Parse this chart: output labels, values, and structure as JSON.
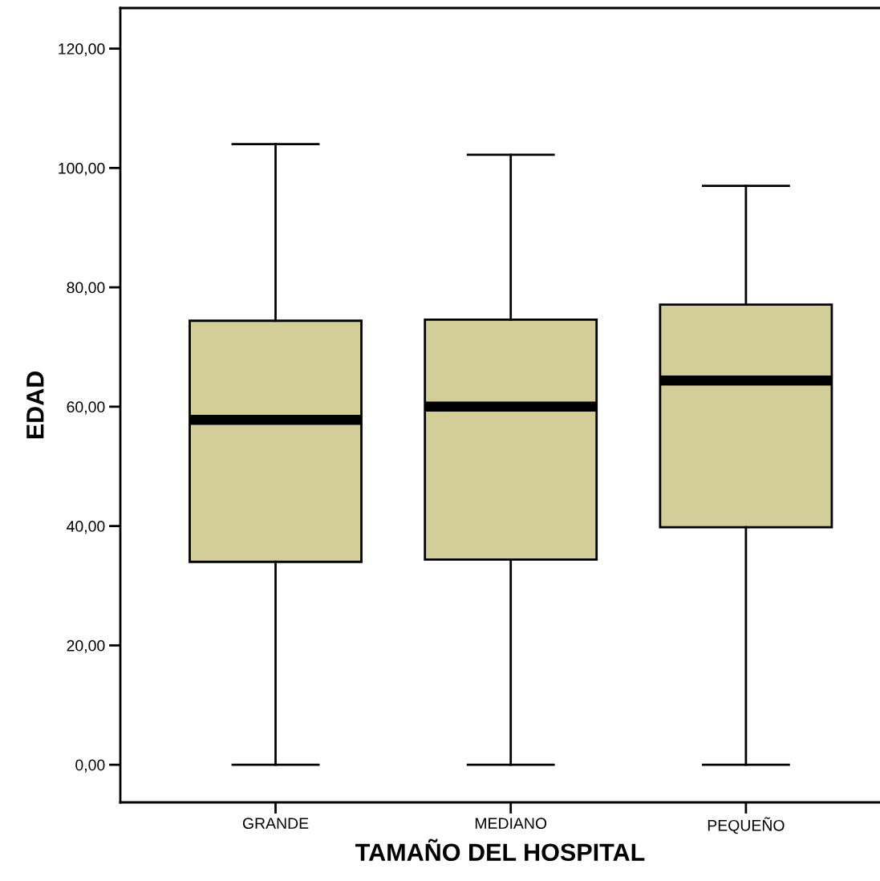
{
  "chart_data": {
    "type": "box",
    "xlabel": "TAMAÑO DEL HOSPITAL",
    "ylabel": "EDAD",
    "categories": [
      "GRANDE",
      "MEDIANO",
      "PEQUEÑO"
    ],
    "series": [
      {
        "color": "#d3ce99",
        "boxes": [
          {
            "low": 0,
            "q1": 34.0,
            "median": 57.8,
            "q3": 74.4,
            "high": 104.0
          },
          {
            "low": 0,
            "q1": 34.4,
            "median": 60.0,
            "q3": 74.6,
            "high": 102.2
          },
          {
            "low": 0,
            "q1": 39.8,
            "median": 64.4,
            "q3": 77.1,
            "high": 97.0
          }
        ]
      }
    ],
    "ylim": [
      -6.3,
      126.8
    ],
    "yticks": [
      {
        "value": 0,
        "label": "0,00"
      },
      {
        "value": 20,
        "label": "20,00"
      },
      {
        "value": 40,
        "label": "40,00"
      },
      {
        "value": 60,
        "label": "60,00"
      },
      {
        "value": 80,
        "label": "80,00"
      },
      {
        "value": 100,
        "label": "100,00"
      },
      {
        "value": 120,
        "label": "120,00"
      }
    ],
    "grid": false
  }
}
